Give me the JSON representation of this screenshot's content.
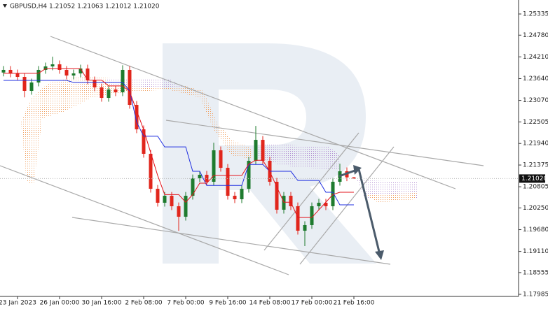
{
  "chart_data": {
    "type": "candlestick",
    "title": "GBPUSD,H4  1.21052 1.21063 1.21012 1.21020",
    "categories": [
      null,
      null,
      "23 Jan 2023",
      null,
      null,
      null,
      null,
      null,
      "26 Jan 00:00",
      null,
      null,
      null,
      null,
      null,
      "30 Jan 16:00",
      null,
      null,
      null,
      null,
      null,
      "2 Feb 08:00",
      null,
      null,
      null,
      null,
      null,
      "7 Feb 00:00",
      null,
      null,
      null,
      null,
      null,
      "9 Feb 16:00",
      null,
      null,
      null,
      null,
      null,
      "14 Feb 08:00",
      null,
      null,
      null,
      null,
      null,
      "17 Feb 00:00",
      null,
      null,
      null,
      null,
      null,
      "21 Feb 16:00"
    ],
    "open": [
      1.238,
      1.23869,
      1.23777,
      1.23685,
      1.23319,
      1.23539,
      1.23869,
      1.2396,
      1.24015,
      1.23869,
      1.23722,
      1.23777,
      1.23905,
      1.23594,
      1.2341,
      1.23135,
      1.23355,
      1.23282,
      1.23869,
      1.22952,
      1.22311,
      1.21669,
      1.20752,
      1.20386,
      1.20569,
      1.20294,
      1.20019,
      1.20569,
      1.21027,
      1.21119,
      1.20936,
      1.21761,
      1.21302,
      1.20569,
      1.20478,
      1.20752,
      1.21486,
      1.22035,
      1.21486,
      1.20936,
      1.20203,
      1.20569,
      1.20294,
      1.19653,
      1.198,
      1.20294,
      1.20386,
      1.20294,
      1.20936,
      1.21211,
      1.21052
    ],
    "high": [
      1.23969,
      1.23969,
      1.23877,
      1.23785,
      1.23639,
      1.23969,
      1.2406,
      1.24215,
      1.24115,
      1.23969,
      1.23877,
      1.24005,
      1.24005,
      1.23694,
      1.2351,
      1.23455,
      1.23455,
      1.2399,
      1.23969,
      1.23052,
      1.22411,
      1.21769,
      1.20852,
      1.20669,
      1.20669,
      1.20394,
      1.20669,
      1.21127,
      1.21219,
      1.21219,
      1.21961,
      1.21861,
      1.21402,
      1.20669,
      1.20852,
      1.21586,
      1.224,
      1.22135,
      1.21586,
      1.21036,
      1.20669,
      1.20669,
      1.20394,
      1.199,
      1.20394,
      1.20486,
      1.20486,
      1.21036,
      1.21411,
      1.21311,
      1.21063
    ],
    "low": [
      1.237,
      1.23677,
      1.23585,
      1.2315,
      1.23219,
      1.23439,
      1.23769,
      1.2386,
      1.23769,
      1.23622,
      1.23622,
      1.23677,
      1.23494,
      1.2331,
      1.23035,
      1.23035,
      1.23182,
      1.23182,
      1.22852,
      1.22211,
      1.21569,
      1.20652,
      1.20286,
      1.20286,
      1.20194,
      1.1965,
      1.19919,
      1.20469,
      1.20927,
      1.20836,
      1.20836,
      1.21202,
      1.20469,
      1.20378,
      1.20378,
      1.20652,
      1.21386,
      1.21386,
      1.20836,
      1.20103,
      1.20103,
      1.20194,
      1.19553,
      1.1925,
      1.197,
      1.20194,
      1.20194,
      1.20194,
      1.20836,
      1.20952,
      1.21012
    ],
    "close": [
      1.23869,
      1.23777,
      1.23685,
      1.23319,
      1.23539,
      1.23869,
      1.2396,
      1.24015,
      1.23869,
      1.23722,
      1.23777,
      1.23905,
      1.23594,
      1.2341,
      1.23135,
      1.23355,
      1.23282,
      1.23869,
      1.22952,
      1.22311,
      1.21669,
      1.20752,
      1.20386,
      1.20569,
      1.20294,
      1.20019,
      1.20569,
      1.21027,
      1.21119,
      1.20936,
      1.21761,
      1.21302,
      1.20569,
      1.20478,
      1.20752,
      1.21486,
      1.22035,
      1.21486,
      1.20936,
      1.20203,
      1.20569,
      1.20294,
      1.19653,
      1.198,
      1.20294,
      1.20386,
      1.20294,
      1.20936,
      1.21211,
      1.21052,
      1.2102
    ],
    "up_color": "#1e7b2e",
    "down_color": "#e1261c",
    "indicators": [
      {
        "color": "#1f2fe0",
        "values": [
          1.23594,
          1.23594,
          1.23594,
          1.23594,
          1.23594,
          1.23594,
          1.23594,
          1.23594,
          1.23594,
          1.23594,
          1.2354,
          1.2354,
          1.2354,
          1.2354,
          1.2354,
          1.2354,
          1.2354,
          1.2354,
          1.23319,
          1.225,
          1.2213,
          1.2213,
          1.2213,
          1.2185,
          1.2185,
          1.2185,
          1.2185,
          1.2121,
          1.2121,
          1.2084,
          1.2084,
          1.2084,
          1.2084,
          1.2084,
          1.2084,
          1.2139,
          1.2139,
          1.2139,
          1.2121,
          1.2121,
          1.2121,
          1.2121,
          1.2097,
          1.2097,
          1.2097,
          1.2097,
          1.2066,
          1.2066,
          1.2033,
          1.2033,
          1.2033
        ]
      },
      {
        "color": "#e3141c",
        "values": [
          1.2378,
          1.2378,
          1.2378,
          1.2378,
          1.2378,
          1.2378,
          1.239,
          1.239,
          1.239,
          1.239,
          1.239,
          1.239,
          1.236,
          1.236,
          1.236,
          1.2345,
          1.2345,
          1.2345,
          1.233,
          1.228,
          1.223,
          1.217,
          1.211,
          1.206,
          1.206,
          1.206,
          1.204,
          1.206,
          1.209,
          1.209,
          1.211,
          1.211,
          1.211,
          1.211,
          1.211,
          1.214,
          1.215,
          1.215,
          1.212,
          1.208,
          1.204,
          1.204,
          1.2,
          1.2,
          1.2,
          1.202,
          1.204,
          1.206,
          1.2066,
          1.2066,
          1.2066
        ]
      }
    ],
    "ylim": [
      1.17985,
      1.25335
    ],
    "yticks": [
      1.25335,
      {
        "value": 1.2478,
        "label": "1.24780"
      },
      {
        "value": 1.2421,
        "label": "1.24210"
      },
      {
        "value": 1.2364,
        "label": "1.23640"
      },
      {
        "value": 1.2307,
        "label": "1.23070"
      },
      1.22505,
      {
        "value": 1.2194,
        "label": "1.21940"
      },
      1.21375,
      1.20805,
      {
        "value": 1.2025,
        "label": "1.20250"
      },
      {
        "value": 1.1968,
        "label": "1.19680"
      },
      {
        "value": 1.1911,
        "label": "1.19110"
      },
      1.18555,
      1.17985
    ],
    "last_price": {
      "value": 1.2102,
      "label": "1.21020"
    },
    "last_price_color": "#111111"
  }
}
